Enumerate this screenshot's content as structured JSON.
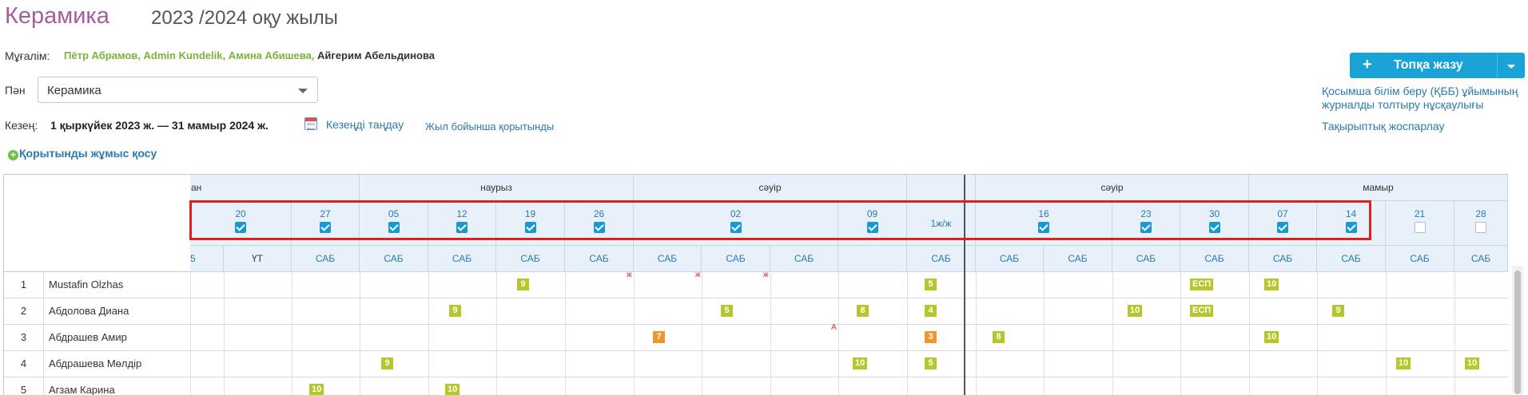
{
  "header": {
    "subject_title": "Керамика",
    "year_title": "2023 /2024 оқу жылы"
  },
  "teacher": {
    "label": "Мұғалім:",
    "links": [
      "Пётр Абрамов,",
      "Admin Kundelik,",
      "Амина Абишева,"
    ],
    "current": "Айгерим Абельдинова"
  },
  "subject_field": {
    "label": "Пән",
    "value": "Керамика"
  },
  "period": {
    "label": "Кезең:",
    "value": "1 қыркүйек 2023 ж. — 31 мамыр 2024 ж.",
    "select_link": "Кезеңді таңдау",
    "year_summary_link": "Жыл бойынша қорытынды"
  },
  "add_summary_label": "Қорытынды жұмыс қосу",
  "group_button": {
    "plus": "+",
    "label": "Топқа жазу"
  },
  "right_links": {
    "guide": "Қосымша білім беру (ҚББ) ұйымының журналды толтыру нұсқаулығы",
    "plan": "Тақырыптық жоспарлау"
  },
  "journal": {
    "months": [
      "ан",
      "наурыз",
      "сәуір",
      "",
      "сәуір",
      "мамыр"
    ],
    "dates": [
      "20",
      "27",
      "05",
      "12",
      "19",
      "26",
      "02",
      "09",
      "1ж/ж",
      "16",
      "23",
      "30",
      "07",
      "14",
      "21",
      "28"
    ],
    "date_checked": [
      true,
      true,
      true,
      true,
      true,
      true,
      true,
      true,
      null,
      true,
      true,
      true,
      true,
      true,
      false,
      false
    ],
    "lesson_types": [
      "5",
      "ҮТ",
      "САБ",
      "САБ",
      "САБ",
      "САБ",
      "САБ",
      "САБ",
      "САБ",
      "САБ",
      "",
      "САБ",
      "САБ",
      "САБ",
      "САБ",
      "САБ",
      "САБ",
      "САБ",
      "САБ",
      "САБ"
    ],
    "absence_mark": "ж",
    "late_mark": "А",
    "students": [
      {
        "num": "1",
        "name": "Mustafin Olzhas",
        "grades": [
          "9",
          "5",
          "ЕСП",
          "10"
        ]
      },
      {
        "num": "2",
        "name": "Абдолова Диана",
        "grades": [
          "9",
          "5",
          "8",
          "4",
          "10",
          "ЕСП",
          "9"
        ]
      },
      {
        "num": "3",
        "name": "Абдрашев Амир",
        "grades": [
          "7",
          "3",
          "8",
          "10"
        ]
      },
      {
        "num": "4",
        "name": "Абдрашева Мөлдір",
        "grades": [
          "9",
          "10",
          "5",
          "10",
          "10"
        ]
      },
      {
        "num": "5",
        "name": "Агзам Карина",
        "grades": [
          "10",
          "10"
        ]
      }
    ]
  },
  "colors": {
    "accent": "#1aa3d6",
    "subject_title": "#a65d9e",
    "grade_green": "#b5c72b",
    "grade_orange": "#f0962e",
    "highlight": "#e02020"
  }
}
